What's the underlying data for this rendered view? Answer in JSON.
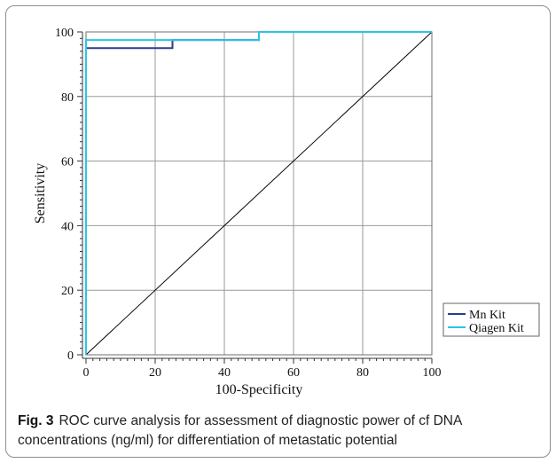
{
  "caption": {
    "label": "Fig. 3",
    "text": "ROC curve analysis for assessment of diagnostic power of cf DNA concentrations (ng/ml) for differentiation of metastatic potential"
  },
  "chart_data": {
    "type": "line",
    "title": "",
    "xlabel": "100-Specificity",
    "ylabel": "Sensitivity",
    "xlim": [
      0,
      100
    ],
    "ylim": [
      0,
      100
    ],
    "xticks": [
      0,
      20,
      40,
      60,
      80,
      100
    ],
    "yticks": [
      0,
      20,
      40,
      60,
      80,
      100
    ],
    "grid": true,
    "legend_position": "bottom-right",
    "series": [
      {
        "name": "Mn Kit",
        "color": "#2f3a8f",
        "x": [
          0,
          0,
          25,
          25,
          50,
          50,
          100
        ],
        "y": [
          0,
          95,
          95,
          97.5,
          97.5,
          100,
          100
        ]
      },
      {
        "name": "Qiagen Kit",
        "color": "#29c4e8",
        "x": [
          0,
          0,
          50,
          50,
          100
        ],
        "y": [
          0,
          97.5,
          97.5,
          100,
          100
        ]
      },
      {
        "color": "#000000",
        "x": [
          0,
          100
        ],
        "y": [
          0,
          100
        ]
      }
    ]
  }
}
